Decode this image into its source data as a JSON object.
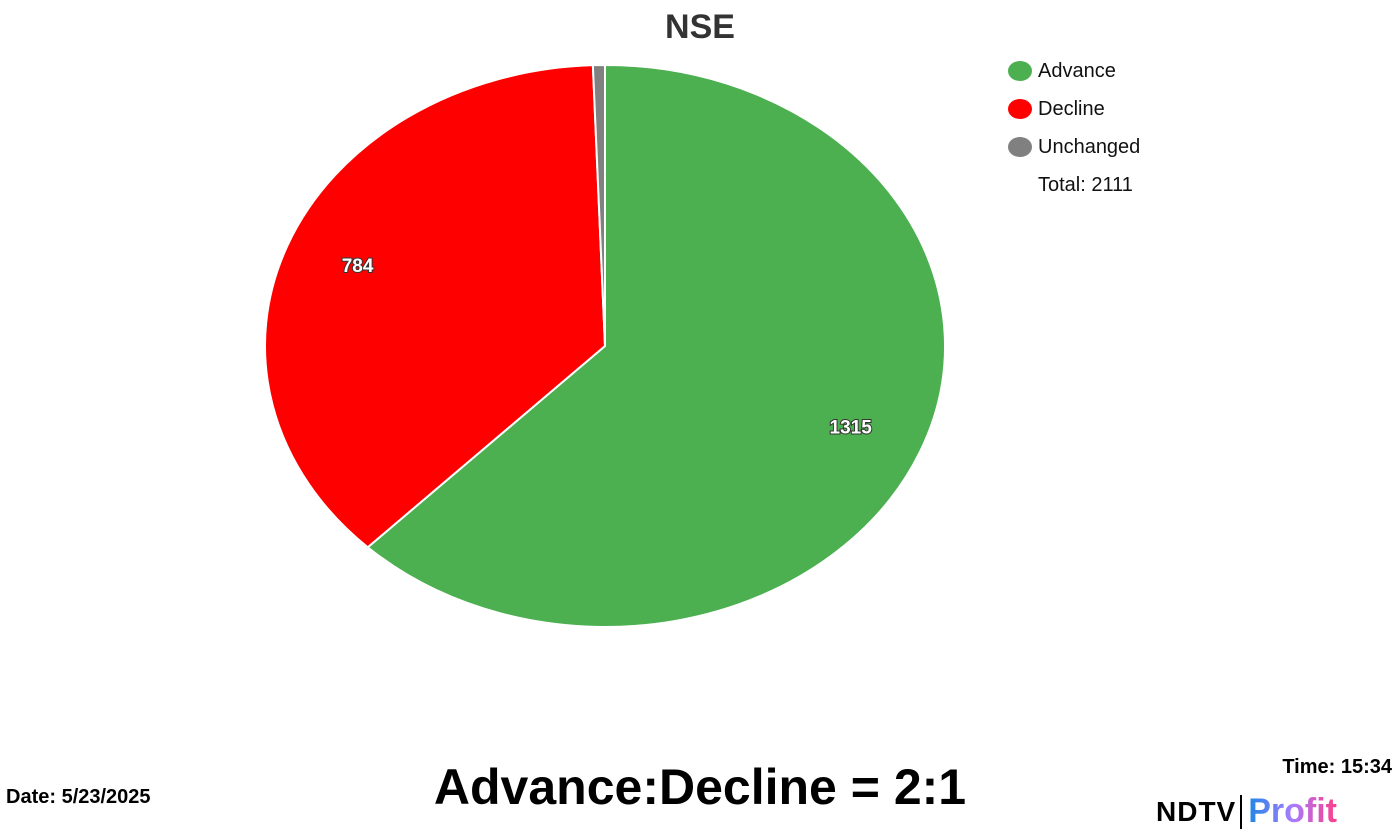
{
  "chart_data": {
    "type": "pie",
    "title": "NSE",
    "slices": [
      {
        "name": "Advance",
        "value": 1315,
        "color": "#4caf50",
        "label": "1315"
      },
      {
        "name": "Decline",
        "value": 784,
        "color": "#ff0000",
        "label": "784"
      },
      {
        "name": "Unchanged",
        "value": 12,
        "color": "#808080",
        "label": ""
      }
    ],
    "start_angle": "top, clockwise",
    "legend_placement": "top-right",
    "total_label": "Total: 2111"
  },
  "footer": {
    "ratio": "Advance:Decline = 2:1",
    "date": "Date: 5/23/2025",
    "time": "Time: 15:34",
    "logo_ndtv": "NDTV",
    "logo_profit": "Profit"
  }
}
